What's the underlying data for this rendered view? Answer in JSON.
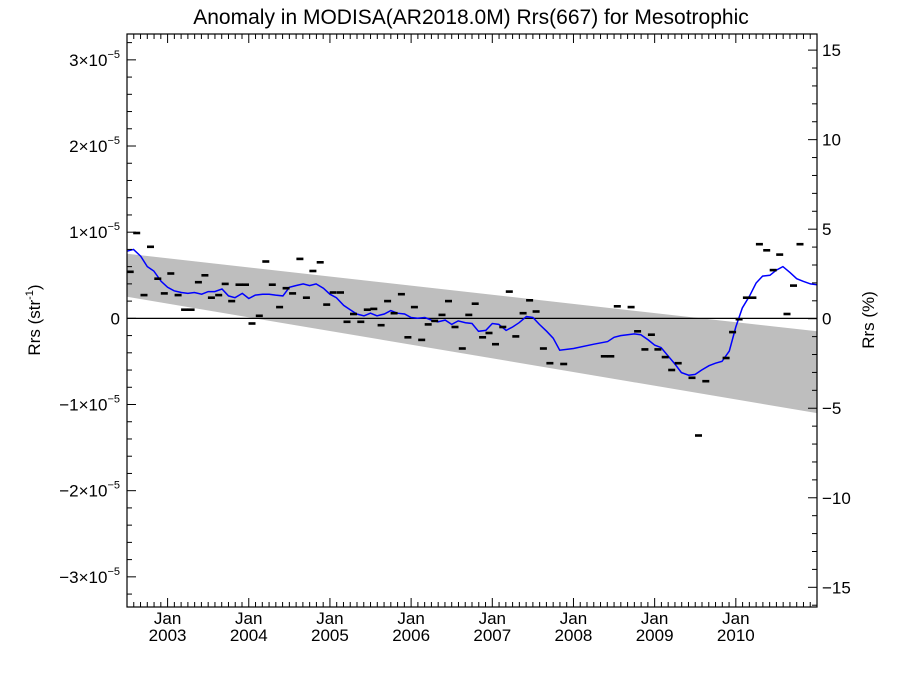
{
  "chart_data": {
    "type": "line",
    "title": "Anomaly in MODISA(AR2018.0M) Rrs(667) for Mesotrophic",
    "ylabel_left": "Rrs (str",
    "ylabel_left_sup": "-1",
    "ylabel_left_end": ")",
    "ylabel_right": "Rrs (%)",
    "xlim": [
      2002.5,
      2011.0
    ],
    "ylim_left": [
      -3.35e-05,
      3.3e-05
    ],
    "ylim_right": [
      -16.1,
      15.9
    ],
    "grid": false,
    "legend": "none",
    "colors": {
      "line": "#0000ff",
      "band": "#bebebe",
      "markers": "#000000",
      "zero_line": "#000000"
    },
    "y_ticks_left": [
      {
        "value": 3e-05,
        "mantissa": "3×10",
        "exp": "−5"
      },
      {
        "value": 2e-05,
        "mantissa": "2×10",
        "exp": "−5"
      },
      {
        "value": 1e-05,
        "mantissa": "1×10",
        "exp": "−5"
      },
      {
        "value": 0,
        "mantissa": "0",
        "exp": ""
      },
      {
        "value": -1e-05,
        "mantissa": "−1×10",
        "exp": "−5"
      },
      {
        "value": -2e-05,
        "mantissa": "−2×10",
        "exp": "−5"
      },
      {
        "value": -3e-05,
        "mantissa": "−3×10",
        "exp": "−5"
      }
    ],
    "y_ticks_right": [
      {
        "value": 15,
        "label": "15"
      },
      {
        "value": 10,
        "label": "10"
      },
      {
        "value": 5,
        "label": "5"
      },
      {
        "value": 0,
        "label": "0"
      },
      {
        "value": -5,
        "label": "−5"
      },
      {
        "value": -10,
        "label": "−10"
      },
      {
        "value": -15,
        "label": "−15"
      }
    ],
    "x_ticks": [
      {
        "value": 2003.0,
        "month": "Jan",
        "year": "2003"
      },
      {
        "value": 2004.0,
        "month": "Jan",
        "year": "2004"
      },
      {
        "value": 2005.0,
        "month": "Jan",
        "year": "2005"
      },
      {
        "value": 2006.0,
        "month": "Jan",
        "year": "2006"
      },
      {
        "value": 2007.0,
        "month": "Jan",
        "year": "2007"
      },
      {
        "value": 2008.0,
        "month": "Jan",
        "year": "2008"
      },
      {
        "value": 2009.0,
        "month": "Jan",
        "year": "2009"
      },
      {
        "value": 2010.0,
        "month": "Jan",
        "year": "2010"
      }
    ],
    "band": {
      "x": [
        2002.5,
        2011.0
      ],
      "upper": [
        7.5e-06,
        -1.5e-06
      ],
      "lower": [
        2.5e-06,
        -1.1e-05
      ]
    },
    "series": [
      {
        "kind": "markers",
        "points": [
          [
            2002.54,
            5.4e-06
          ],
          [
            2002.62,
            9.9e-06
          ],
          [
            2002.71,
            2.7e-06
          ],
          [
            2002.79,
            8.3e-06
          ],
          [
            2002.88,
            4.6e-06
          ],
          [
            2002.96,
            2.9e-06
          ],
          [
            2003.04,
            5.2e-06
          ],
          [
            2003.13,
            2.7e-06
          ],
          [
            2003.21,
            1e-06
          ],
          [
            2003.29,
            1e-06
          ],
          [
            2003.38,
            4.2e-06
          ],
          [
            2003.46,
            5e-06
          ],
          [
            2003.54,
            2.4e-06
          ],
          [
            2003.63,
            2.7e-06
          ],
          [
            2003.71,
            4e-06
          ],
          [
            2003.79,
            2e-06
          ],
          [
            2003.88,
            3.9e-06
          ],
          [
            2003.96,
            3.9e-06
          ],
          [
            2004.04,
            -6e-07
          ],
          [
            2004.13,
            3e-07
          ],
          [
            2004.21,
            6.6e-06
          ],
          [
            2004.29,
            3.9e-06
          ],
          [
            2004.38,
            1.3e-06
          ],
          [
            2004.46,
            3.5e-06
          ],
          [
            2004.54,
            2.9e-06
          ],
          [
            2004.63,
            6.9e-06
          ],
          [
            2004.71,
            2.4e-06
          ],
          [
            2004.79,
            5.5e-06
          ],
          [
            2004.88,
            6.5e-06
          ],
          [
            2004.96,
            1.6e-06
          ],
          [
            2005.04,
            3e-06
          ],
          [
            2005.13,
            3e-06
          ],
          [
            2005.21,
            -4e-07
          ],
          [
            2005.29,
            5e-07
          ],
          [
            2005.38,
            -4e-07
          ],
          [
            2005.46,
            1e-06
          ],
          [
            2005.54,
            1.1e-06
          ],
          [
            2005.63,
            -8e-07
          ],
          [
            2005.71,
            2e-06
          ],
          [
            2005.79,
            6e-07
          ],
          [
            2005.88,
            2.8e-06
          ],
          [
            2005.96,
            -2.2e-06
          ],
          [
            2006.04,
            1.3e-06
          ],
          [
            2006.13,
            -2.5e-06
          ],
          [
            2006.21,
            -7e-07
          ],
          [
            2006.29,
            -3e-07
          ],
          [
            2006.38,
            4e-07
          ],
          [
            2006.46,
            2e-06
          ],
          [
            2006.54,
            -1e-06
          ],
          [
            2006.63,
            -3.5e-06
          ],
          [
            2006.71,
            4e-07
          ],
          [
            2006.79,
            1.7e-06
          ],
          [
            2006.88,
            -2.2e-06
          ],
          [
            2006.96,
            -1.7e-06
          ],
          [
            2007.04,
            -3e-06
          ],
          [
            2007.13,
            -1e-06
          ],
          [
            2007.21,
            3.1e-06
          ],
          [
            2007.29,
            -2.1e-06
          ],
          [
            2007.38,
            6e-07
          ],
          [
            2007.46,
            2.1e-06
          ],
          [
            2007.54,
            8e-07
          ],
          [
            2007.63,
            -3.5e-06
          ],
          [
            2007.71,
            -5.2e-06
          ],
          [
            2007.88,
            -5.3e-06
          ],
          [
            2008.38,
            -4.4e-06
          ],
          [
            2008.46,
            -4.4e-06
          ],
          [
            2008.54,
            1.4e-06
          ],
          [
            2008.71,
            1.3e-06
          ],
          [
            2008.79,
            -1.5e-06
          ],
          [
            2008.88,
            -3.6e-06
          ],
          [
            2008.96,
            -1.9e-06
          ],
          [
            2009.04,
            -3.6e-06
          ],
          [
            2009.13,
            -4.5e-06
          ],
          [
            2009.21,
            -6e-06
          ],
          [
            2009.29,
            -5.2e-06
          ],
          [
            2009.46,
            -6.9e-06
          ],
          [
            2009.54,
            -1.36e-05
          ],
          [
            2009.63,
            -7.3e-06
          ],
          [
            2009.88,
            -4.6e-06
          ],
          [
            2009.96,
            -1.6e-06
          ],
          [
            2010.04,
            -1e-07
          ],
          [
            2010.13,
            2.4e-06
          ],
          [
            2010.21,
            2.4e-06
          ],
          [
            2010.29,
            8.6e-06
          ],
          [
            2010.38,
            7.9e-06
          ],
          [
            2010.46,
            5.6e-06
          ],
          [
            2010.54,
            7.4e-06
          ],
          [
            2010.63,
            5e-07
          ],
          [
            2010.71,
            3.8e-06
          ],
          [
            2010.79,
            8.6e-06
          ]
        ]
      },
      {
        "kind": "line",
        "points": [
          [
            2002.5,
            7.8e-06
          ],
          [
            2002.58,
            8e-06
          ],
          [
            2002.67,
            7.2e-06
          ],
          [
            2002.75,
            6e-06
          ],
          [
            2002.83,
            5.5e-06
          ],
          [
            2002.92,
            4.3e-06
          ],
          [
            2003.0,
            3.6e-06
          ],
          [
            2003.08,
            3.2e-06
          ],
          [
            2003.17,
            3e-06
          ],
          [
            2003.25,
            2.9e-06
          ],
          [
            2003.33,
            3e-06
          ],
          [
            2003.42,
            2.8e-06
          ],
          [
            2003.5,
            3.1e-06
          ],
          [
            2003.58,
            3.1e-06
          ],
          [
            2003.67,
            3.4e-06
          ],
          [
            2003.75,
            2.6e-06
          ],
          [
            2003.83,
            2.4e-06
          ],
          [
            2003.92,
            2.9e-06
          ],
          [
            2004.0,
            2.3e-06
          ],
          [
            2004.08,
            2.7e-06
          ],
          [
            2004.17,
            2.8e-06
          ],
          [
            2004.25,
            2.8e-06
          ],
          [
            2004.33,
            2.7e-06
          ],
          [
            2004.42,
            2.6e-06
          ],
          [
            2004.5,
            3.6e-06
          ],
          [
            2004.58,
            3.8e-06
          ],
          [
            2004.67,
            4e-06
          ],
          [
            2004.75,
            3.8e-06
          ],
          [
            2004.83,
            4e-06
          ],
          [
            2004.92,
            3.5e-06
          ],
          [
            2005.0,
            2.8e-06
          ],
          [
            2005.08,
            2.4e-06
          ],
          [
            2005.17,
            1.5e-06
          ],
          [
            2005.25,
            1e-06
          ],
          [
            2005.33,
            5e-07
          ],
          [
            2005.42,
            3e-07
          ],
          [
            2005.5,
            6e-07
          ],
          [
            2005.58,
            3e-07
          ],
          [
            2005.67,
            5e-07
          ],
          [
            2005.75,
            9e-07
          ],
          [
            2005.83,
            6e-07
          ],
          [
            2005.92,
            5e-07
          ],
          [
            2006.0,
            1e-07
          ],
          [
            2006.08,
            0.0
          ],
          [
            2006.17,
            1e-07
          ],
          [
            2006.25,
            -2e-07
          ],
          [
            2006.33,
            -4e-07
          ],
          [
            2006.42,
            -2e-07
          ],
          [
            2006.5,
            -7e-07
          ],
          [
            2006.58,
            -3e-07
          ],
          [
            2006.67,
            -5e-07
          ],
          [
            2006.75,
            -6e-07
          ],
          [
            2006.83,
            -1.5e-06
          ],
          [
            2006.92,
            -1.4e-06
          ],
          [
            2007.0,
            -6e-07
          ],
          [
            2007.08,
            -7e-07
          ],
          [
            2007.17,
            -1.4e-06
          ],
          [
            2007.25,
            -1e-06
          ],
          [
            2007.33,
            -5e-07
          ],
          [
            2007.42,
            2e-07
          ],
          [
            2007.5,
            1e-07
          ],
          [
            2007.58,
            -7e-07
          ],
          [
            2007.67,
            -1.5e-06
          ],
          [
            2007.75,
            -2.3e-06
          ],
          [
            2007.83,
            -3.7e-06
          ],
          [
            2008.0,
            -3.5e-06
          ],
          [
            2008.25,
            -3e-06
          ],
          [
            2008.42,
            -2.7e-06
          ],
          [
            2008.5,
            -2.2e-06
          ],
          [
            2008.58,
            -2e-06
          ],
          [
            2008.75,
            -1.8e-06
          ],
          [
            2008.83,
            -1.9e-06
          ],
          [
            2008.92,
            -2.5e-06
          ],
          [
            2009.0,
            -3.1e-06
          ],
          [
            2009.08,
            -3.4e-06
          ],
          [
            2009.17,
            -4.4e-06
          ],
          [
            2009.25,
            -5.3e-06
          ],
          [
            2009.33,
            -6.3e-06
          ],
          [
            2009.42,
            -6.6e-06
          ],
          [
            2009.5,
            -6.5e-06
          ],
          [
            2009.58,
            -6e-06
          ],
          [
            2009.67,
            -5.5e-06
          ],
          [
            2009.75,
            -5.2e-06
          ],
          [
            2009.83,
            -5e-06
          ],
          [
            2009.92,
            -3.8e-06
          ],
          [
            2010.0,
            -1e-06
          ],
          [
            2010.08,
            1.2e-06
          ],
          [
            2010.17,
            2.6e-06
          ],
          [
            2010.25,
            4.1e-06
          ],
          [
            2010.33,
            4.9e-06
          ],
          [
            2010.42,
            5e-06
          ],
          [
            2010.5,
            5.6e-06
          ],
          [
            2010.58,
            6e-06
          ],
          [
            2010.67,
            5.3e-06
          ],
          [
            2010.75,
            4.6e-06
          ],
          [
            2010.83,
            4.3e-06
          ],
          [
            2010.92,
            4e-06
          ],
          [
            2011.0,
            3.9e-06
          ]
        ]
      }
    ]
  }
}
